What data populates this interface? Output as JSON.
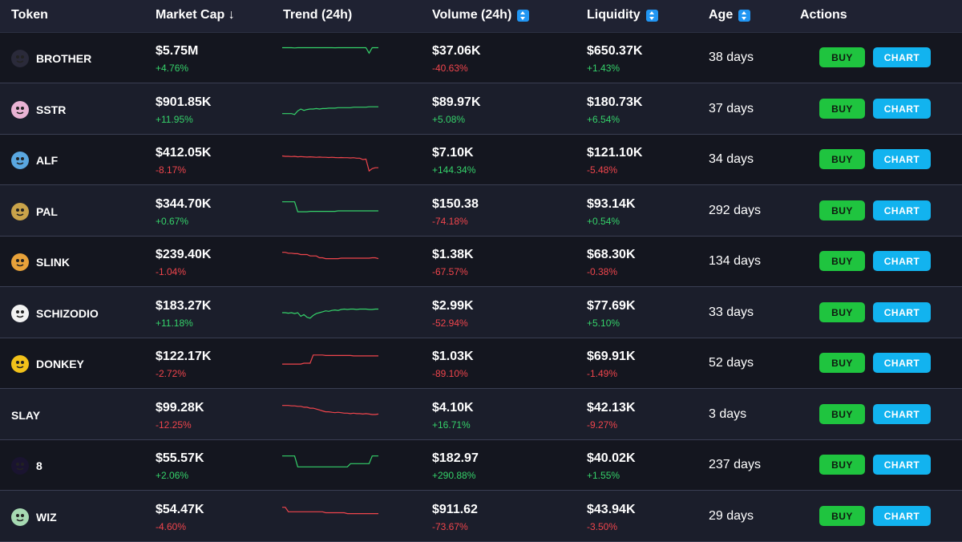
{
  "header": {
    "token": "Token",
    "market_cap": "Market Cap ↓",
    "trend": "Trend (24h)",
    "volume": "Volume (24h)",
    "liquidity": "Liquidity",
    "age": "Age",
    "actions": "Actions"
  },
  "colors": {
    "up": "#35d26a",
    "down": "#f0454c",
    "buy": "#1fc43f",
    "chart": "#12b3ef"
  },
  "rows": [
    {
      "symbol": "BROTHER",
      "avatar_icon": "brother-avatar-icon",
      "avatar_color": "#2a2a3a",
      "market_cap": "$5.75M",
      "market_cap_change": "+4.76%",
      "volume": "$37.06K",
      "volume_change": "-40.63%",
      "liquidity": "$650.37K",
      "liquidity_change": "+1.43%",
      "age": "38 days",
      "buy": "BUY",
      "chart": "CHART",
      "trend_dir": "up",
      "trend": [
        52,
        52,
        52,
        52,
        51.5,
        52,
        52,
        52,
        52,
        52,
        52,
        52,
        52,
        52,
        52,
        52,
        52,
        51.8,
        52,
        52,
        52,
        52,
        52,
        52,
        52,
        52,
        52,
        52,
        40,
        52,
        52,
        52
      ]
    },
    {
      "symbol": "SSTR",
      "avatar_icon": "sstr-avatar-icon",
      "avatar_color": "#e9b3d4",
      "market_cap": "$901.85K",
      "market_cap_change": "+11.95%",
      "volume": "$89.97K",
      "volume_change": "+5.08%",
      "liquidity": "$180.73K",
      "liquidity_change": "+6.54%",
      "age": "37 days",
      "buy": "BUY",
      "chart": "CHART",
      "trend_dir": "up",
      "trend": [
        20,
        20,
        20,
        20,
        18,
        26,
        30,
        27,
        29,
        30,
        30,
        31,
        30,
        31,
        31,
        32,
        32,
        32,
        33,
        33,
        33,
        33,
        33,
        34,
        34,
        34,
        34,
        34,
        35,
        35,
        35,
        35
      ]
    },
    {
      "symbol": "ALF",
      "avatar_icon": "alf-avatar-icon",
      "avatar_color": "#5aa7e0",
      "market_cap": "$412.05K",
      "market_cap_change": "-8.17%",
      "volume": "$7.10K",
      "volume_change": "+144.34%",
      "liquidity": "$121.10K",
      "liquidity_change": "-5.48%",
      "age": "34 days",
      "buy": "BUY",
      "chart": "CHART",
      "trend_dir": "down",
      "trend": [
        38,
        37,
        37,
        36.5,
        37,
        36,
        36.5,
        36,
        35.5,
        36,
        35.5,
        35,
        35.5,
        35,
        35,
        34.5,
        35,
        34.5,
        34,
        34.5,
        34,
        34,
        33.5,
        34,
        33,
        33,
        30,
        31,
        5,
        10,
        12,
        12
      ]
    },
    {
      "symbol": "PAL",
      "avatar_icon": "pal-avatar-icon",
      "avatar_color": "#c9a34a",
      "market_cap": "$344.70K",
      "market_cap_change": "+0.67%",
      "volume": "$150.38",
      "volume_change": "-74.18%",
      "liquidity": "$93.14K",
      "liquidity_change": "+0.54%",
      "age": "292 days",
      "buy": "BUY",
      "chart": "CHART",
      "trend_dir": "up",
      "trend": [
        50,
        50,
        50,
        50,
        50,
        28,
        28,
        28,
        28,
        29,
        29,
        29,
        29,
        29,
        29,
        29,
        29,
        29,
        30,
        30,
        30,
        30,
        30,
        30,
        30,
        30,
        30,
        30,
        30,
        30,
        30,
        30
      ]
    },
    {
      "symbol": "SLINK",
      "avatar_icon": "slink-avatar-icon",
      "avatar_color": "#e8a23a",
      "market_cap": "$239.40K",
      "market_cap_change": "-1.04%",
      "volume": "$1.38K",
      "volume_change": "-67.57%",
      "liquidity": "$68.30K",
      "liquidity_change": "-0.38%",
      "age": "134 days",
      "buy": "BUY",
      "chart": "CHART",
      "trend_dir": "down",
      "trend": [
        50,
        50,
        48,
        48,
        47,
        47,
        45,
        45,
        45,
        42,
        42,
        42,
        38,
        38,
        36,
        36,
        36,
        36,
        36,
        37,
        37,
        37,
        37,
        37,
        37,
        37,
        37,
        37,
        37,
        38,
        38,
        36
      ]
    },
    {
      "symbol": "SCHIZODIO",
      "avatar_icon": "schizodio-avatar-icon",
      "avatar_color": "#f2f2f2",
      "market_cap": "$183.27K",
      "market_cap_change": "+11.18%",
      "volume": "$2.99K",
      "volume_change": "-52.94%",
      "liquidity": "$77.69K",
      "liquidity_change": "+5.10%",
      "age": "33 days",
      "buy": "BUY",
      "chart": "CHART",
      "trend_dir": "up",
      "trend": [
        30,
        30,
        29,
        30,
        28,
        30,
        22,
        26,
        20,
        18,
        24,
        28,
        30,
        32,
        34,
        33,
        35,
        36,
        35,
        37,
        38,
        37,
        38,
        38,
        37,
        38,
        38,
        38,
        37,
        37,
        38,
        38
      ]
    },
    {
      "symbol": "DONKEY",
      "avatar_icon": "donkey-avatar-icon",
      "avatar_color": "#f2c21a",
      "market_cap": "$122.17K",
      "market_cap_change": "-2.72%",
      "volume": "$1.03K",
      "volume_change": "-89.10%",
      "liquidity": "$69.91K",
      "liquidity_change": "-1.49%",
      "age": "52 days",
      "buy": "BUY",
      "chart": "CHART",
      "trend_dir": "down",
      "trend": [
        28,
        28,
        28,
        28,
        28,
        28,
        28,
        30,
        30,
        30,
        48,
        48,
        48,
        48,
        47,
        47,
        47,
        47,
        47,
        47,
        47,
        47,
        47,
        46,
        46,
        46,
        46,
        46,
        46,
        46,
        46,
        46
      ]
    },
    {
      "symbol": "SLAY",
      "avatar_icon": "",
      "avatar_color": "",
      "market_cap": "$99.28K",
      "market_cap_change": "-12.25%",
      "volume": "$4.10K",
      "volume_change": "+16.71%",
      "liquidity": "$42.13K",
      "liquidity_change": "-9.27%",
      "age": "3 days",
      "buy": "BUY",
      "chart": "CHART",
      "trend_dir": "down",
      "trend": [
        50,
        50,
        50,
        49,
        49,
        48,
        48,
        46,
        46,
        44,
        44,
        42,
        40,
        38,
        36,
        36,
        35,
        34,
        35,
        34,
        33,
        33,
        32,
        33,
        32,
        32,
        31,
        32,
        31,
        30,
        30,
        31
      ]
    },
    {
      "symbol": "8",
      "avatar_icon": "eight-avatar-icon",
      "avatar_color": "#1a1430",
      "market_cap": "$55.57K",
      "market_cap_change": "+2.06%",
      "volume": "$182.97",
      "volume_change": "+290.88%",
      "liquidity": "$40.02K",
      "liquidity_change": "+1.55%",
      "age": "237 days",
      "buy": "BUY",
      "chart": "CHART",
      "trend_dir": "up",
      "trend": [
        50,
        50,
        50,
        50,
        50,
        26,
        26,
        26,
        26,
        26,
        26,
        26,
        26,
        26,
        26,
        26,
        26,
        26,
        26,
        26,
        26,
        26,
        33,
        33,
        33,
        33,
        33,
        33,
        33,
        50,
        50,
        50
      ]
    },
    {
      "symbol": "WIZ",
      "avatar_icon": "wiz-avatar-icon",
      "avatar_color": "#a6d9b2",
      "market_cap": "$54.47K",
      "market_cap_change": "-4.60%",
      "volume": "$911.62",
      "volume_change": "-73.67%",
      "liquidity": "$43.94K",
      "liquidity_change": "-3.50%",
      "age": "29 days",
      "buy": "BUY",
      "chart": "CHART",
      "trend_dir": "down",
      "trend": [
        50,
        50,
        40,
        40,
        40,
        40,
        40,
        40,
        40,
        40,
        40,
        40,
        40,
        40,
        38,
        38,
        38,
        38,
        38,
        38,
        38,
        36,
        36,
        36,
        36,
        36,
        36,
        36,
        36,
        36,
        36,
        36
      ]
    }
  ]
}
